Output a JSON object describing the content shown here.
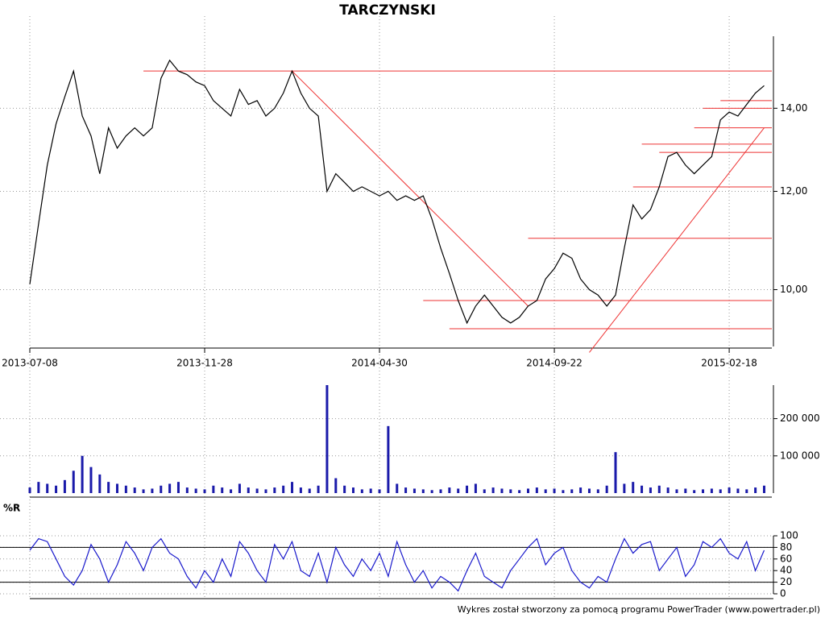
{
  "chart_data": [
    {
      "type": "line",
      "title": "TARCZYNSKI",
      "log_scale": true,
      "grid": true,
      "color": "#000000",
      "categories": [
        "2013-07-08",
        null,
        null,
        null,
        null,
        null,
        null,
        null,
        null,
        null,
        null,
        null,
        null,
        null,
        null,
        null,
        null,
        null,
        null,
        null,
        "2013-11-28",
        null,
        null,
        null,
        null,
        null,
        null,
        null,
        null,
        null,
        null,
        null,
        null,
        null,
        null,
        null,
        null,
        null,
        null,
        null,
        "2014-04-30",
        null,
        null,
        null,
        null,
        null,
        null,
        null,
        null,
        null,
        null,
        null,
        null,
        null,
        null,
        null,
        null,
        null,
        null,
        null,
        "2014-09-22",
        null,
        null,
        null,
        null,
        null,
        null,
        null,
        null,
        null,
        null,
        null,
        null,
        null,
        null,
        null,
        null,
        null,
        null,
        null,
        "2015-02-18",
        null,
        null,
        null,
        null
      ],
      "values": [
        10.1,
        11.3,
        12.6,
        13.6,
        14.3,
        15.0,
        13.8,
        13.3,
        12.4,
        13.5,
        13.0,
        13.3,
        13.5,
        13.3,
        13.5,
        14.8,
        15.3,
        15.0,
        14.9,
        14.7,
        14.6,
        14.2,
        14.0,
        13.8,
        14.5,
        14.1,
        14.2,
        13.8,
        14.0,
        14.4,
        15.0,
        14.4,
        14.0,
        13.8,
        12.0,
        12.4,
        12.2,
        12.0,
        12.1,
        12.0,
        11.9,
        12.0,
        11.8,
        11.9,
        11.8,
        11.9,
        11.4,
        10.8,
        10.3,
        9.8,
        9.4,
        9.7,
        9.9,
        9.7,
        9.5,
        9.4,
        9.5,
        9.7,
        9.8,
        10.2,
        10.4,
        10.7,
        10.6,
        10.2,
        10.0,
        9.9,
        9.7,
        9.9,
        10.8,
        11.7,
        11.4,
        11.6,
        12.1,
        12.8,
        12.9,
        12.6,
        12.4,
        12.6,
        12.8,
        13.7,
        13.9,
        13.8,
        14.1,
        14.4,
        14.6
      ],
      "ylim": [
        9,
        16
      ],
      "yticks": [
        {
          "value": 10,
          "label": "10,00"
        },
        {
          "value": 12,
          "label": "12,00"
        },
        {
          "value": 14,
          "label": "14,00"
        }
      ],
      "level_color": "#ee3333",
      "levels": [
        {
          "value": 15.0,
          "start": 13
        },
        {
          "value": 14.2,
          "start": 79
        },
        {
          "value": 14.0,
          "start": 77
        },
        {
          "value": 13.5,
          "start": 76
        },
        {
          "value": 13.1,
          "start": 70
        },
        {
          "value": 12.9,
          "start": 72
        },
        {
          "value": 12.1,
          "start": 69
        },
        {
          "value": 11.0,
          "start": 57
        },
        {
          "value": 9.8,
          "start": 45
        },
        {
          "value": 9.3,
          "start": 48
        }
      ],
      "trendlines": [
        {
          "from": 30,
          "to": 57,
          "values": [
            15.0,
            9.7
          ]
        },
        {
          "from": 64,
          "to": 84,
          "values": [
            8.9,
            13.5
          ]
        }
      ]
    },
    {
      "type": "bar",
      "color": "#1a1aaa",
      "values": [
        15000,
        30000,
        25000,
        20000,
        35000,
        60000,
        100000,
        70000,
        50000,
        30000,
        25000,
        20000,
        15000,
        10000,
        12000,
        20000,
        25000,
        30000,
        15000,
        12000,
        10000,
        20000,
        15000,
        10000,
        25000,
        15000,
        12000,
        10000,
        15000,
        20000,
        30000,
        15000,
        12000,
        20000,
        290000,
        40000,
        20000,
        15000,
        10000,
        12000,
        10000,
        180000,
        25000,
        15000,
        12000,
        10000,
        8000,
        10000,
        15000,
        12000,
        20000,
        25000,
        10000,
        15000,
        12000,
        10000,
        8000,
        12000,
        15000,
        10000,
        12000,
        8000,
        10000,
        15000,
        12000,
        10000,
        20000,
        110000,
        25000,
        30000,
        20000,
        15000,
        20000,
        15000,
        10000,
        12000,
        8000,
        10000,
        12000,
        10000,
        15000,
        12000,
        10000,
        15000,
        20000
      ],
      "ylim": [
        0,
        290000
      ],
      "yticks": [
        {
          "value": 100000,
          "label": "100 000"
        },
        {
          "value": 200000,
          "label": "200 000"
        }
      ]
    },
    {
      "type": "line",
      "title": "%R",
      "color": "#1a1acc",
      "values": [
        75,
        95,
        90,
        60,
        30,
        15,
        40,
        85,
        60,
        20,
        50,
        90,
        70,
        40,
        80,
        95,
        70,
        60,
        30,
        10,
        40,
        20,
        60,
        30,
        90,
        70,
        40,
        20,
        85,
        60,
        90,
        40,
        30,
        70,
        20,
        80,
        50,
        30,
        60,
        40,
        70,
        30,
        90,
        50,
        20,
        40,
        10,
        30,
        20,
        5,
        40,
        70,
        30,
        20,
        10,
        40,
        60,
        80,
        95,
        50,
        70,
        80,
        40,
        20,
        10,
        30,
        20,
        60,
        95,
        70,
        85,
        90,
        40,
        60,
        80,
        30,
        50,
        90,
        80,
        95,
        70,
        60,
        90,
        40,
        75
      ],
      "ylim": [
        0,
        100
      ],
      "yticks": [
        0,
        20,
        40,
        60,
        80,
        100
      ],
      "levels": [
        80,
        20
      ]
    }
  ],
  "footer": "Wykres został stworzony za pomocą programu PowerTrader (www.powertrader.pl)"
}
